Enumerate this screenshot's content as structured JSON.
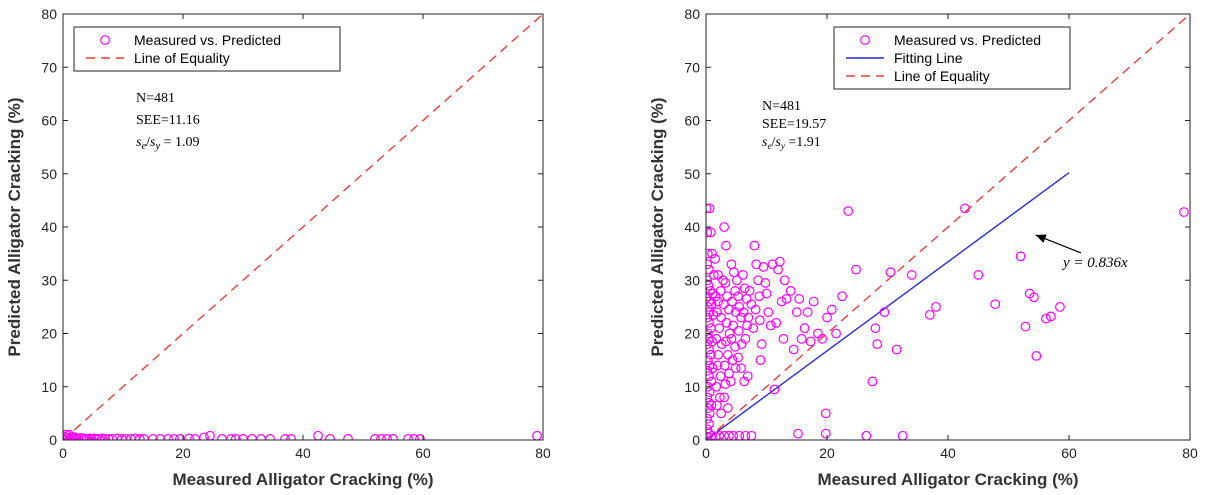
{
  "chart_data": [
    {
      "type": "scatter",
      "xlabel": "Measured Alligator Cracking (%)",
      "ylabel": "Predicted Alligator Cracking (%)",
      "xlim": [
        0,
        80
      ],
      "ylim": [
        0,
        80
      ],
      "xticks": [
        "0",
        "20",
        "40",
        "60",
        "80"
      ],
      "yticks": [
        "0",
        "10",
        "20",
        "30",
        "40",
        "50",
        "60",
        "70",
        "80"
      ],
      "grid": false,
      "legend_position": "top-left",
      "legend": [
        {
          "label": "Measured vs. Predicted",
          "style": "marker",
          "color": "#ff00ff"
        },
        {
          "label": "Line of Equality",
          "style": "dashed",
          "color": "#e8403a"
        }
      ],
      "stats": [
        "N=481",
        "SEE=11.16",
        "s_e/s_y = 1.09"
      ],
      "equality_line": {
        "from": [
          0,
          0
        ],
        "to": [
          80,
          80
        ],
        "color": "#e8403a"
      },
      "series": [
        {
          "marker_color": "#ff00ff",
          "points": [
            [
              0.1,
              0.2
            ],
            [
              0.3,
              0.6
            ],
            [
              0.5,
              1.0
            ],
            [
              0.8,
              0.4
            ],
            [
              1.0,
              1.0
            ],
            [
              1.2,
              0.3
            ],
            [
              1.5,
              0.6
            ],
            [
              1.8,
              0.2
            ],
            [
              2.0,
              0.5
            ],
            [
              2.3,
              0.3
            ],
            [
              2.6,
              0.2
            ],
            [
              3.0,
              0.4
            ],
            [
              3.3,
              0.2
            ],
            [
              3.6,
              0.3
            ],
            [
              4.0,
              0.2
            ],
            [
              4.4,
              0.3
            ],
            [
              4.8,
              0.2
            ],
            [
              5.2,
              0.3
            ],
            [
              5.6,
              0.2
            ],
            [
              6.0,
              0.2
            ],
            [
              6.5,
              0.3
            ],
            [
              7.0,
              0.2
            ],
            [
              7.6,
              0.2
            ],
            [
              8.2,
              0.2
            ],
            [
              9.0,
              0.3
            ],
            [
              9.8,
              0.2
            ],
            [
              10.5,
              0.2
            ],
            [
              11.3,
              0.2
            ],
            [
              12.0,
              0.3
            ],
            [
              12.8,
              0.2
            ],
            [
              13.5,
              0.2
            ],
            [
              15.0,
              0.2
            ],
            [
              16.2,
              0.2
            ],
            [
              17.5,
              0.2
            ],
            [
              18.5,
              0.2
            ],
            [
              19.5,
              0.2
            ],
            [
              21.0,
              0.3
            ],
            [
              22.0,
              0.2
            ],
            [
              23.5,
              0.5
            ],
            [
              24.5,
              0.8
            ],
            [
              26.5,
              0.2
            ],
            [
              28.0,
              0.2
            ],
            [
              28.8,
              0.2
            ],
            [
              30.0,
              0.2
            ],
            [
              31.5,
              0.2
            ],
            [
              33.0,
              0.2
            ],
            [
              34.5,
              0.2
            ],
            [
              37.0,
              0.2
            ],
            [
              38.0,
              0.2
            ],
            [
              42.5,
              0.8
            ],
            [
              44.5,
              0.2
            ],
            [
              47.5,
              0.2
            ],
            [
              52.0,
              0.2
            ],
            [
              53.0,
              0.2
            ],
            [
              54.0,
              0.2
            ],
            [
              55.0,
              0.2
            ],
            [
              57.5,
              0.2
            ],
            [
              58.5,
              0.2
            ],
            [
              59.5,
              0.2
            ],
            [
              79.0,
              0.8
            ]
          ]
        }
      ]
    },
    {
      "type": "scatter",
      "xlabel": "Measured Alligator Cracking (%)",
      "ylabel": "Predicted Alligator Cracking (%)",
      "xlim": [
        0,
        80
      ],
      "ylim": [
        0,
        80
      ],
      "xticks": [
        "0",
        "20",
        "40",
        "60",
        "80"
      ],
      "yticks": [
        "0",
        "10",
        "20",
        "30",
        "40",
        "50",
        "60",
        "70",
        "80"
      ],
      "grid": false,
      "legend_position": "top-center",
      "legend": [
        {
          "label": "Measured vs. Predicted",
          "style": "marker",
          "color": "#ff00ff"
        },
        {
          "label": "Fitting Line",
          "style": "solid",
          "color": "#2b2bdc"
        },
        {
          "label": "Line of Equality",
          "style": "dashed",
          "color": "#e8403a"
        }
      ],
      "stats": [
        "N=481",
        "SEE=19.57",
        "s_e/s_y =1.91"
      ],
      "equality_line": {
        "from": [
          0,
          0
        ],
        "to": [
          80,
          80
        ],
        "color": "#e8403a"
      },
      "fit_line": {
        "from": [
          0,
          0
        ],
        "to": [
          60,
          50.2
        ],
        "color": "#2b2bdc"
      },
      "annotation": {
        "text": "y = 0.836x",
        "point_at": [
          54.5,
          38.5
        ],
        "text_at": [
          59,
          32.5
        ]
      },
      "series": [
        {
          "marker_color": "#ff00ff",
          "points": [
            [
              0.1,
              43.5
            ],
            [
              0.6,
              43.5
            ],
            [
              0.2,
              39
            ],
            [
              0.8,
              39
            ],
            [
              0.3,
              35
            ],
            [
              1.0,
              35
            ],
            [
              0.2,
              33
            ],
            [
              0.5,
              32
            ],
            [
              1.3,
              31
            ],
            [
              0.2,
              30
            ],
            [
              0.4,
              29
            ],
            [
              0.7,
              28
            ],
            [
              1.1,
              27.5
            ],
            [
              0.2,
              27
            ],
            [
              0.5,
              26
            ],
            [
              0.9,
              25.5
            ],
            [
              0.3,
              25
            ],
            [
              0.6,
              24
            ],
            [
              1.2,
              23.5
            ],
            [
              0.2,
              23
            ],
            [
              0.5,
              22
            ],
            [
              0.8,
              21
            ],
            [
              0.3,
              20
            ],
            [
              0.6,
              19
            ],
            [
              1.0,
              18.5
            ],
            [
              0.2,
              18
            ],
            [
              0.5,
              17
            ],
            [
              0.8,
              16
            ],
            [
              0.3,
              15
            ],
            [
              0.6,
              14
            ],
            [
              1.1,
              13.5
            ],
            [
              0.2,
              13
            ],
            [
              0.5,
              12
            ],
            [
              0.9,
              11
            ],
            [
              0.3,
              10
            ],
            [
              0.6,
              9
            ],
            [
              0.2,
              8
            ],
            [
              0.5,
              7
            ],
            [
              0.9,
              6.5
            ],
            [
              0.3,
              6
            ],
            [
              0.6,
              5
            ],
            [
              0.2,
              4
            ],
            [
              0.5,
              3
            ],
            [
              0.2,
              2
            ],
            [
              0.5,
              1.2
            ],
            [
              0.2,
              0.6
            ],
            [
              1.0,
              0.8
            ],
            [
              1.6,
              0.6
            ],
            [
              2.2,
              0.8
            ],
            [
              3.0,
              0.8
            ],
            [
              3.8,
              0.8
            ],
            [
              4.5,
              0.8
            ],
            [
              5.5,
              0.8
            ],
            [
              6.5,
              0.8
            ],
            [
              7.5,
              0.8
            ],
            [
              1.5,
              34
            ],
            [
              2.0,
              31
            ],
            [
              2.4,
              28
            ],
            [
              2.8,
              30
            ],
            [
              2.0,
              26
            ],
            [
              1.8,
              24
            ],
            [
              2.5,
              23
            ],
            [
              2.2,
              21
            ],
            [
              1.7,
              19
            ],
            [
              2.6,
              18
            ],
            [
              2.0,
              16
            ],
            [
              1.9,
              14
            ],
            [
              2.4,
              12
            ],
            [
              1.7,
              10
            ],
            [
              2.3,
              8
            ],
            [
              1.8,
              6.5
            ],
            [
              2.5,
              5
            ],
            [
              1.6,
              27
            ],
            [
              2.9,
              25.5
            ],
            [
              3.2,
              29.5
            ],
            [
              3.5,
              27
            ],
            [
              3.8,
              24.5
            ],
            [
              3.4,
              22
            ],
            [
              3.9,
              20
            ],
            [
              3.3,
              18.5
            ],
            [
              3.6,
              16
            ],
            [
              3.1,
              14
            ],
            [
              3.8,
              12.5
            ],
            [
              3.2,
              10.5
            ],
            [
              3.0,
              8
            ],
            [
              3.6,
              6
            ],
            [
              3.0,
              40
            ],
            [
              3.3,
              36.5
            ],
            [
              4.2,
              33
            ],
            [
              4.6,
              31.5
            ],
            [
              4.8,
              28
            ],
            [
              4.3,
              26
            ],
            [
              4.9,
              24
            ],
            [
              4.5,
              21.5
            ],
            [
              4.2,
              19
            ],
            [
              4.8,
              17.5
            ],
            [
              4.4,
              15
            ],
            [
              4.9,
              13.5
            ],
            [
              4.1,
              11
            ],
            [
              5.1,
              30
            ],
            [
              5.3,
              27
            ],
            [
              5.5,
              25
            ],
            [
              5.8,
              23
            ],
            [
              5.4,
              20.5
            ],
            [
              5.9,
              18
            ],
            [
              5.3,
              15.5
            ],
            [
              5.8,
              13.5
            ],
            [
              6.1,
              31
            ],
            [
              6.4,
              28.5
            ],
            [
              6.7,
              26.5
            ],
            [
              6.2,
              24
            ],
            [
              6.8,
              21.5
            ],
            [
              6.5,
              19
            ],
            [
              6.3,
              11
            ],
            [
              6.9,
              12
            ],
            [
              7.2,
              28
            ],
            [
              7.5,
              25.5
            ],
            [
              7.0,
              23
            ],
            [
              7.8,
              21
            ],
            [
              8.0,
              36.5
            ],
            [
              8.3,
              33
            ],
            [
              8.6,
              30
            ],
            [
              8.8,
              27
            ],
            [
              8.2,
              24.5
            ],
            [
              8.9,
              22.5
            ],
            [
              9.0,
              15
            ],
            [
              9.2,
              18
            ],
            [
              9.5,
              32.5
            ],
            [
              9.8,
              29.5
            ],
            [
              10.0,
              27.5
            ],
            [
              10.3,
              24
            ],
            [
              10.7,
              21.5
            ],
            [
              11.0,
              33
            ],
            [
              11.3,
              9.5
            ],
            [
              11.6,
              22
            ],
            [
              11.9,
              32
            ],
            [
              12.2,
              33.5
            ],
            [
              12.5,
              26
            ],
            [
              12.8,
              19
            ],
            [
              13.0,
              30
            ],
            [
              13.3,
              26.5
            ],
            [
              14.0,
              28
            ],
            [
              14.5,
              17
            ],
            [
              15.0,
              24
            ],
            [
              15.4,
              26.5
            ],
            [
              15.8,
              19
            ],
            [
              16.3,
              21
            ],
            [
              16.8,
              24
            ],
            [
              17.3,
              18.5
            ],
            [
              17.8,
              26
            ],
            [
              18.5,
              20
            ],
            [
              19.2,
              19
            ],
            [
              20.0,
              23
            ],
            [
              20.8,
              24.5
            ],
            [
              21.5,
              20
            ],
            [
              22.5,
              27
            ],
            [
              23.5,
              43
            ],
            [
              24.8,
              32
            ],
            [
              15.2,
              1.2
            ],
            [
              19.8,
              5
            ],
            [
              19.8,
              1.2
            ],
            [
              26.5,
              0.8
            ],
            [
              27.5,
              11
            ],
            [
              28.0,
              21
            ],
            [
              28.3,
              18
            ],
            [
              29.5,
              24
            ],
            [
              30.5,
              31.5
            ],
            [
              31.5,
              17
            ],
            [
              32.5,
              0.8
            ],
            [
              34.0,
              31
            ],
            [
              37.0,
              23.5
            ],
            [
              38.0,
              25
            ],
            [
              42.8,
              43.5
            ],
            [
              45.0,
              31
            ],
            [
              47.8,
              25.5
            ],
            [
              52.0,
              34.5
            ],
            [
              52.8,
              21.3
            ],
            [
              53.5,
              27.5
            ],
            [
              54.2,
              26.8
            ],
            [
              54.6,
              15.8
            ],
            [
              56.2,
              22.8
            ],
            [
              57.0,
              23.2
            ],
            [
              58.5,
              25
            ],
            [
              79.0,
              42.8
            ]
          ]
        }
      ]
    }
  ]
}
